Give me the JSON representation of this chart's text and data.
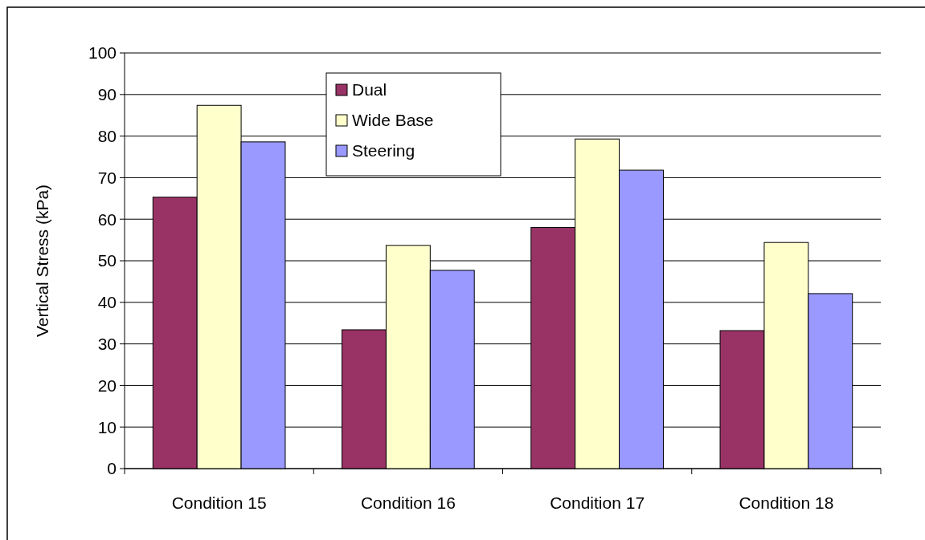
{
  "chart_data": {
    "type": "bar",
    "ylabel": "Vertical Stress (kPa)",
    "categories": [
      "Condition 15",
      "Condition 16",
      "Condition 17",
      "Condition 18"
    ],
    "series": [
      {
        "name": "Dual",
        "color": "#993366",
        "values": [
          65.3,
          33.4,
          58.0,
          33.2
        ]
      },
      {
        "name": "Wide Base",
        "color": "#ffffcc",
        "values": [
          87.4,
          53.7,
          79.3,
          54.4
        ]
      },
      {
        "name": "Steering",
        "color": "#9999ff",
        "values": [
          78.6,
          47.7,
          71.8,
          42.1
        ]
      }
    ],
    "ylim": [
      0,
      100
    ],
    "yticks": [
      0,
      10,
      20,
      30,
      40,
      50,
      60,
      70,
      80,
      90,
      100
    ],
    "grid": "y",
    "legend": "top left"
  }
}
